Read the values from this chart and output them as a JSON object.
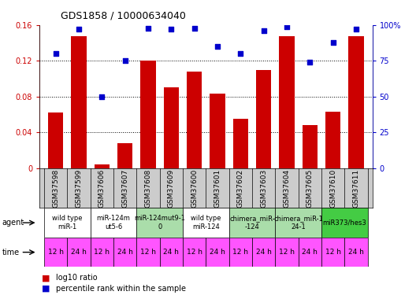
{
  "title": "GDS1858 / 10000634040",
  "samples": [
    "GSM37598",
    "GSM37599",
    "GSM37606",
    "GSM37607",
    "GSM37608",
    "GSM37609",
    "GSM37600",
    "GSM37601",
    "GSM37602",
    "GSM37603",
    "GSM37604",
    "GSM37605",
    "GSM37610",
    "GSM37611"
  ],
  "log10_ratio": [
    0.062,
    0.148,
    0.004,
    0.028,
    0.12,
    0.09,
    0.108,
    0.083,
    0.055,
    0.11,
    0.148,
    0.048,
    0.063,
    0.148
  ],
  "percentile_rank": [
    80,
    97,
    50,
    75,
    98,
    97,
    98,
    85,
    80,
    96,
    99,
    74,
    88,
    97
  ],
  "ylim_left": [
    0,
    0.16
  ],
  "ylim_right": [
    0,
    100
  ],
  "yticks_left": [
    0,
    0.04,
    0.08,
    0.12,
    0.16
  ],
  "yticks_right": [
    0,
    25,
    50,
    75,
    100
  ],
  "agent_groups": [
    {
      "label": "wild type\nmiR-1",
      "cols": [
        0,
        1
      ],
      "color": "#ffffff"
    },
    {
      "label": "miR-124m\nut5-6",
      "cols": [
        2,
        3
      ],
      "color": "#ffffff"
    },
    {
      "label": "miR-124mut9-1\n0",
      "cols": [
        4,
        5
      ],
      "color": "#aaddaa"
    },
    {
      "label": "wild type\nmiR-124",
      "cols": [
        6,
        7
      ],
      "color": "#ffffff"
    },
    {
      "label": "chimera_miR-\n-124",
      "cols": [
        8,
        9
      ],
      "color": "#aaddaa"
    },
    {
      "label": "chimera_miR-1\n24-1",
      "cols": [
        10,
        11
      ],
      "color": "#aaddaa"
    },
    {
      "label": "miR373/hes3",
      "cols": [
        12,
        13
      ],
      "color": "#44cc44"
    }
  ],
  "time_labels": [
    "12 h",
    "24 h",
    "12 h",
    "24 h",
    "12 h",
    "24 h",
    "12 h",
    "24 h",
    "12 h",
    "24 h",
    "12 h",
    "24 h",
    "12 h",
    "24 h"
  ],
  "bar_color": "#cc0000",
  "dot_color": "#0000cc",
  "bg_color": "#ffffff",
  "left_axis_color": "#cc0000",
  "right_axis_color": "#0000cc",
  "magenta": "#ff55ff",
  "sample_bg": "#cccccc",
  "title_fontsize": 9,
  "tick_fontsize": 7,
  "label_fontsize": 6.5,
  "time_fontsize": 6.5,
  "agent_fontsize": 6,
  "legend_fontsize": 7
}
